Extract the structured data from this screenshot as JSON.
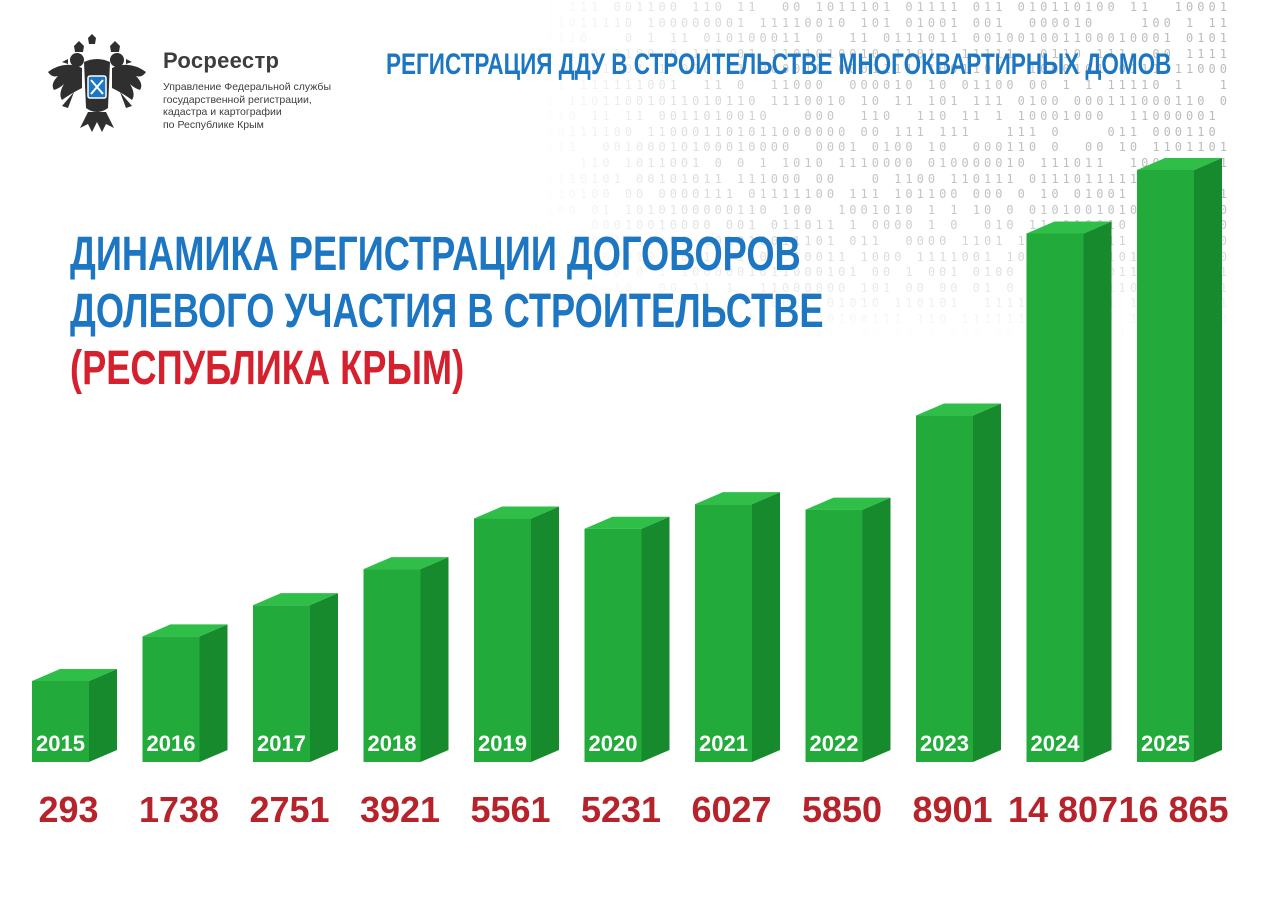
{
  "header": {
    "logo_name": "Росреестр",
    "logo_description": [
      "Управление Федеральной службы",
      "государственной регистрации,",
      "кадастра и картографии",
      "по Республике Крым"
    ],
    "top_title": "РЕГИСТРАЦИЯ  ДДУ  В СТРОИТЕЛЬСТВЕ МНОГОКВАРТИРНЫХ ДОМОВ"
  },
  "title": {
    "line1": "ДИНАМИКА РЕГИСТРАЦИИ ДОГОВОРОВ",
    "line2": "ДОЛЕВОГО УЧАСТИЯ В СТРОИТЕЛЬСТВЕ",
    "line3": "(РЕСПУБЛИКА КРЫМ)"
  },
  "colors": {
    "accent_blue": "#1d76c2",
    "accent_red": "#d5202e",
    "value_red": "#b7232b",
    "bar_front": "#22ab3a",
    "bar_side": "#168a2c",
    "bar_top": "#2fbf49"
  },
  "chart_data": {
    "type": "bar",
    "title": "ДИНАМИКА РЕГИСТРАЦИИ ДОГОВОРОВ ДОЛЕВОГО УЧАСТИЯ В СТРОИТЕЛЬСТВЕ (РЕСПУБЛИКА КРЫМ)",
    "xlabel": "",
    "ylabel": "",
    "categories": [
      "2015",
      "2016",
      "2017",
      "2018",
      "2019",
      "2020",
      "2021",
      "2022",
      "2023",
      "2024",
      "2025"
    ],
    "values": [
      293,
      1738,
      2751,
      3921,
      5561,
      5231,
      6027,
      5850,
      8901,
      14807,
      16865
    ],
    "value_labels": [
      "293",
      "1738",
      "2751",
      "3921",
      "5561",
      "5231",
      "6027",
      "5850",
      "8901",
      "14 807",
      "16 865"
    ],
    "style": "3d-bar",
    "axis_visible": false
  }
}
